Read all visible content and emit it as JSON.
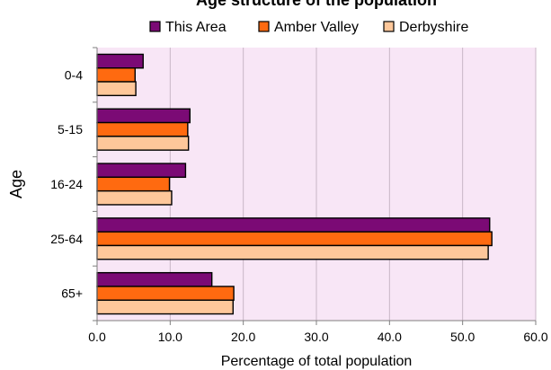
{
  "chart_data": {
    "type": "bar",
    "orientation": "horizontal",
    "title": "Age structure of the population",
    "xlabel": "Percentage of total population",
    "ylabel": "Age",
    "xlim": [
      0,
      60
    ],
    "x_ticks": [
      "0.0",
      "10.0",
      "20.0",
      "30.0",
      "40.0",
      "50.0",
      "60.0"
    ],
    "categories": [
      "0-4",
      "5-15",
      "16-24",
      "25-64",
      "65+"
    ],
    "series": [
      {
        "name": "This Area",
        "color": "#7b0a75",
        "values": [
          6.3,
          12.7,
          12.1,
          53.7,
          15.7
        ]
      },
      {
        "name": "Amber Valley",
        "color": "#ff6a10",
        "values": [
          5.2,
          12.4,
          9.9,
          54.0,
          18.7
        ]
      },
      {
        "name": "Derbyshire",
        "color": "#fec79a",
        "values": [
          5.3,
          12.5,
          10.2,
          53.5,
          18.6
        ]
      }
    ],
    "plot_background": "#f8e6f6",
    "grid": true,
    "legend_position": "top"
  }
}
